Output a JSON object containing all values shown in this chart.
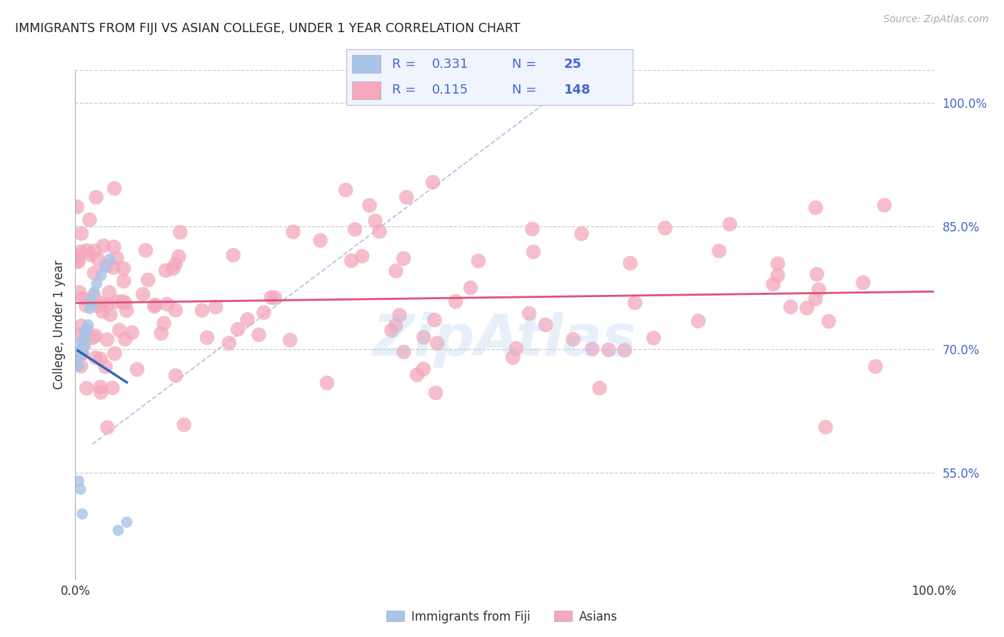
{
  "title": "IMMIGRANTS FROM FIJI VS ASIAN COLLEGE, UNDER 1 YEAR CORRELATION CHART",
  "source": "Source: ZipAtlas.com",
  "ylabel": "College, Under 1 year",
  "right_yticks": [
    0.55,
    0.7,
    0.85,
    1.0
  ],
  "right_yticklabels": [
    "55.0%",
    "70.0%",
    "85.0%",
    "100.0%"
  ],
  "xlim": [
    0.0,
    1.0
  ],
  "ylim": [
    0.42,
    1.04
  ],
  "fiji_R": 0.331,
  "fiji_N": 25,
  "asian_R": 0.115,
  "asian_N": 148,
  "fiji_color": "#a8c4e8",
  "asian_color": "#f4a8bc",
  "fiji_line_color": "#3366bb",
  "asian_line_color": "#e0507a",
  "fiji_marker_size": 130,
  "asian_marker_size": 220,
  "legend_fiji_label": "Immigrants from Fiji",
  "legend_asian_label": "Asians",
  "watermark": "ZipAtlas",
  "background_color": "#ffffff",
  "grid_color": "#cccccc",
  "legend_text_color": "#4466cc",
  "diag_color": "#9ab0d8"
}
